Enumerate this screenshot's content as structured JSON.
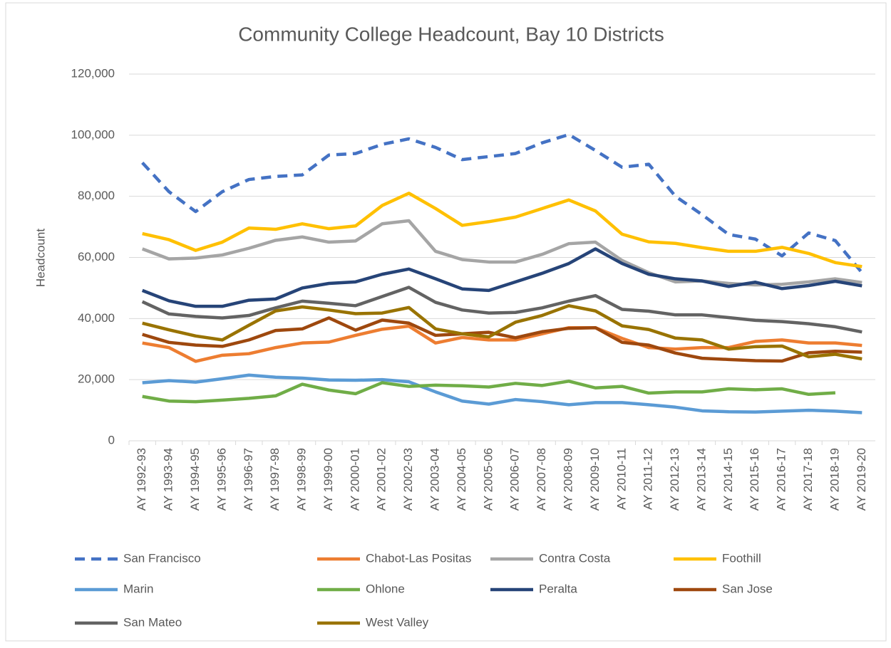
{
  "chart_data": {
    "type": "line",
    "title": "Community College Headcount, Bay 10 Districts",
    "y_label": "Headcount",
    "categories": [
      "AY 1992-93",
      "AY 1993-94",
      "AY 1994-95",
      "AY 1995-96",
      "AY 1996-97",
      "AY 1997-98",
      "AY 1998-99",
      "AY 1999-00",
      "AY 2000-01",
      "AY 2001-02",
      "AY 2002-03",
      "AY 2003-04",
      "AY 2004-05",
      "AY 2005-06",
      "AY 2006-07",
      "AY 2007-08",
      "AY 2008-09",
      "AY 2009-10",
      "AY 2010-11",
      "AY 2011-12",
      "AY 2012-13",
      "AY 2013-14",
      "AY 2014-15",
      "AY 2015-16",
      "AY 2016-17",
      "AY 2017-18",
      "AY 2018-19",
      "AY 2019-20"
    ],
    "ylim": [
      0,
      120000
    ],
    "yticks": [
      0,
      {
        "value": 20000,
        "label": "20,000"
      },
      {
        "value": 40000,
        "label": "40,000"
      },
      {
        "value": 60000,
        "label": "60,000"
      },
      {
        "value": 80000,
        "label": "80,000"
      },
      {
        "value": 100000,
        "label": "100,000"
      },
      {
        "value": 120000,
        "label": "120,000"
      }
    ],
    "grid": true,
    "legend": "bottom",
    "series": [
      {
        "name": "San Francisco",
        "color": "#4472c4",
        "line_style": "dashed",
        "values": [
          91000,
          81500,
          75000,
          81500,
          85500,
          86500,
          87000,
          93500,
          94000,
          97000,
          98800,
          96000,
          92000,
          93000,
          94000,
          97500,
          100200,
          95000,
          89500,
          90500,
          80000,
          74000,
          67500,
          66000,
          60500,
          68000,
          65500,
          55000
        ]
      },
      {
        "name": "Chabot-Las Positas",
        "color": "#ed7d31",
        "values": [
          32000,
          30500,
          26000,
          28000,
          28500,
          30500,
          32000,
          32300,
          34500,
          36500,
          37500,
          32000,
          33800,
          33000,
          33000,
          35000,
          37000,
          37000,
          33500,
          30500,
          30000,
          30500,
          30500,
          32500,
          33000,
          32000,
          32000,
          31200
        ]
      },
      {
        "name": "Contra Costa",
        "color": "#a5a5a5",
        "values": [
          62800,
          59500,
          59800,
          60800,
          63000,
          65600,
          66700,
          65000,
          65400,
          71000,
          72000,
          62000,
          59300,
          58500,
          58500,
          61000,
          64500,
          65000,
          59000,
          55000,
          52000,
          52300,
          51500,
          51000,
          51200,
          52000,
          53000,
          51800
        ]
      },
      {
        "name": "Foothill",
        "color": "#ffc000",
        "values": [
          67800,
          65800,
          62300,
          65000,
          69600,
          69200,
          71000,
          69400,
          70300,
          77000,
          81000,
          76000,
          70500,
          71700,
          73200,
          76000,
          78800,
          75200,
          67600,
          65100,
          64600,
          63200,
          62000,
          62000,
          63300,
          61300,
          58300,
          57000
        ]
      },
      {
        "name": "Marin",
        "color": "#5b9bd5",
        "values": [
          19000,
          19700,
          19200,
          20300,
          21500,
          20800,
          20500,
          19900,
          19800,
          20000,
          19300,
          16000,
          13000,
          12000,
          13500,
          12800,
          11800,
          12500,
          12500,
          11800,
          11000,
          9800,
          9500,
          9400,
          9700,
          10000,
          9700,
          9200
        ]
      },
      {
        "name": "Ohlone",
        "color": "#70ad47",
        "values": [
          14500,
          13000,
          12800,
          13300,
          13900,
          14700,
          18500,
          16600,
          15400,
          19000,
          17800,
          18200,
          18000,
          17600,
          18800,
          18100,
          19500,
          17300,
          17800,
          15600,
          16000,
          16000,
          17000,
          16700,
          17000,
          15200,
          15700,
          null
        ]
      },
      {
        "name": "Peralta",
        "color": "#264478",
        "values": [
          49200,
          45800,
          44000,
          44000,
          46000,
          46400,
          50000,
          51500,
          52000,
          54500,
          56200,
          53000,
          49700,
          49200,
          52000,
          54800,
          58000,
          62800,
          58000,
          54500,
          53000,
          52300,
          50500,
          51900,
          49800,
          50800,
          52200,
          50700
        ]
      },
      {
        "name": "San Jose",
        "color": "#9e480e",
        "values": [
          34800,
          32200,
          31300,
          30900,
          33000,
          36100,
          36600,
          40200,
          36200,
          39500,
          38500,
          34500,
          35000,
          35500,
          33700,
          35700,
          36800,
          37000,
          32200,
          31300,
          28700,
          27000,
          26600,
          26200,
          26100,
          28800,
          29300,
          29000
        ]
      },
      {
        "name": "San Mateo",
        "color": "#636363",
        "values": [
          45500,
          41500,
          40700,
          40200,
          41000,
          43500,
          45700,
          45000,
          44200,
          47200,
          50200,
          45300,
          42800,
          41800,
          42000,
          43500,
          45700,
          47500,
          43000,
          42400,
          41200,
          41200,
          40300,
          39400,
          39000,
          38300,
          37300,
          35600
        ]
      },
      {
        "name": "West Valley",
        "color": "#997300",
        "values": [
          38500,
          36300,
          34300,
          33000,
          37800,
          42500,
          43800,
          42800,
          41600,
          41800,
          43600,
          36600,
          35000,
          34000,
          38800,
          41000,
          44200,
          42500,
          37600,
          36400,
          33600,
          33000,
          30000,
          30800,
          31000,
          27500,
          28300,
          26800
        ]
      }
    ]
  }
}
